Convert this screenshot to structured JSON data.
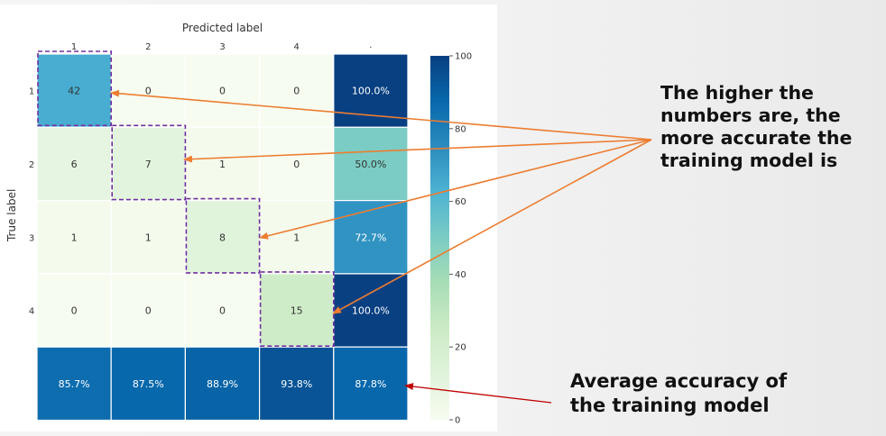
{
  "chart_data": {
    "type": "heatmap",
    "xlabel": "Predicted label",
    "ylabel": "True label",
    "x_tick_labels": [
      "1",
      "2",
      "3",
      "4"
    ],
    "y_tick_labels": [
      "1",
      "2",
      "3",
      "4"
    ],
    "matrix": [
      [
        42,
        0,
        0,
        0
      ],
      [
        6,
        7,
        1,
        0
      ],
      [
        1,
        1,
        8,
        1
      ],
      [
        0,
        0,
        0,
        15
      ]
    ],
    "row_accuracy": [
      "100.0%",
      "50.0%",
      "72.7%",
      "100.0%"
    ],
    "row_accuracy_values": [
      100.0,
      50.0,
      72.7,
      100.0
    ],
    "column_accuracy": [
      "85.7%",
      "87.5%",
      "88.9%",
      "93.8%"
    ],
    "column_accuracy_values": [
      85.7,
      87.5,
      88.9,
      93.8
    ],
    "overall_accuracy": "87.8%",
    "overall_accuracy_value": 87.8,
    "colorbar_range": [
      0,
      100
    ],
    "colorbar_ticks": [
      "0",
      "20",
      "40",
      "60",
      "80",
      "100"
    ],
    "colormap": [
      "#f7fcf0",
      "#e0f3db",
      "#ccebc5",
      "#a8ddb5",
      "#7bccc4",
      "#4eb3d3",
      "#2b8cbe",
      "#0868ac",
      "#084081"
    ],
    "grid": false
  },
  "annotations": {
    "diagonal_note": [
      "The higher the",
      "numbers are, the",
      "more accurate the",
      "training model is"
    ],
    "average_note": [
      "Average accuracy of",
      "the training model"
    ],
    "arrow_color_orange": "#ed7d31",
    "arrow_color_red": "#c00000",
    "highlight_color": "#7030a0"
  }
}
